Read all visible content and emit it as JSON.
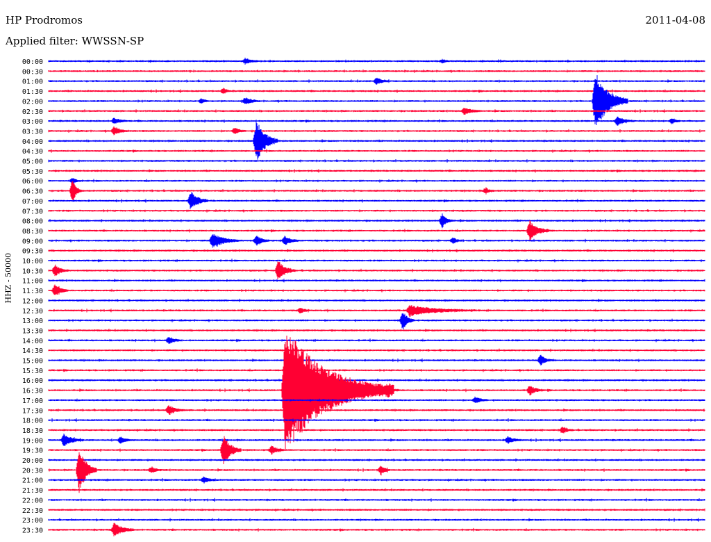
{
  "header": {
    "station": "HP Prodromos",
    "filter": "Applied filter: WWSSN-SP",
    "date": "2011-04-08"
  },
  "chart_data": {
    "type": "line",
    "title": "HP Prodromos",
    "subtitle": "Applied filter: WWSSN-SP",
    "ylabel": "HHZ - 50000",
    "series_colors": [
      "#0000ff",
      "#ff0033"
    ],
    "grid": false,
    "rows": [
      {
        "label": "00:00",
        "color": "#0000ff"
      },
      {
        "label": "00:30",
        "color": "#ff0033"
      },
      {
        "label": "01:00",
        "color": "#0000ff"
      },
      {
        "label": "01:30",
        "color": "#ff0033"
      },
      {
        "label": "02:00",
        "color": "#0000ff"
      },
      {
        "label": "02:30",
        "color": "#ff0033"
      },
      {
        "label": "03:00",
        "color": "#0000ff"
      },
      {
        "label": "03:30",
        "color": "#ff0033"
      },
      {
        "label": "04:00",
        "color": "#0000ff"
      },
      {
        "label": "04:30",
        "color": "#ff0033"
      },
      {
        "label": "05:00",
        "color": "#0000ff"
      },
      {
        "label": "05:30",
        "color": "#ff0033"
      },
      {
        "label": "06:00",
        "color": "#0000ff"
      },
      {
        "label": "06:30",
        "color": "#ff0033"
      },
      {
        "label": "07:00",
        "color": "#0000ff"
      },
      {
        "label": "07:30",
        "color": "#ff0033"
      },
      {
        "label": "08:00",
        "color": "#0000ff"
      },
      {
        "label": "08:30",
        "color": "#ff0033"
      },
      {
        "label": "09:00",
        "color": "#0000ff"
      },
      {
        "label": "09:30",
        "color": "#ff0033"
      },
      {
        "label": "10:00",
        "color": "#0000ff"
      },
      {
        "label": "10:30",
        "color": "#ff0033"
      },
      {
        "label": "11:00",
        "color": "#0000ff"
      },
      {
        "label": "11:30",
        "color": "#ff0033"
      },
      {
        "label": "12:00",
        "color": "#0000ff"
      },
      {
        "label": "12:30",
        "color": "#ff0033"
      },
      {
        "label": "13:00",
        "color": "#0000ff"
      },
      {
        "label": "13:30",
        "color": "#ff0033"
      },
      {
        "label": "14:00",
        "color": "#0000ff"
      },
      {
        "label": "14:30",
        "color": "#ff0033"
      },
      {
        "label": "15:00",
        "color": "#0000ff"
      },
      {
        "label": "15:30",
        "color": "#ff0033"
      },
      {
        "label": "16:00",
        "color": "#0000ff"
      },
      {
        "label": "16:30",
        "color": "#ff0033"
      },
      {
        "label": "17:00",
        "color": "#0000ff"
      },
      {
        "label": "17:30",
        "color": "#ff0033"
      },
      {
        "label": "18:00",
        "color": "#0000ff"
      },
      {
        "label": "18:30",
        "color": "#ff0033"
      },
      {
        "label": "19:00",
        "color": "#0000ff"
      },
      {
        "label": "19:30",
        "color": "#ff0033"
      },
      {
        "label": "20:00",
        "color": "#0000ff"
      },
      {
        "label": "20:30",
        "color": "#ff0033"
      },
      {
        "label": "21:00",
        "color": "#0000ff"
      },
      {
        "label": "21:30",
        "color": "#ff0033"
      },
      {
        "label": "22:00",
        "color": "#0000ff"
      },
      {
        "label": "22:30",
        "color": "#ff0033"
      },
      {
        "label": "23:00",
        "color": "#0000ff"
      },
      {
        "label": "23:30",
        "color": "#ff0033"
      }
    ],
    "events": [
      {
        "row": 0,
        "min": 9,
        "amp": 0.3,
        "dur": 0.6
      },
      {
        "row": 0,
        "min": 18,
        "amp": 0.15,
        "dur": 0.4
      },
      {
        "row": 2,
        "min": 15,
        "amp": 0.35,
        "dur": 0.6
      },
      {
        "row": 3,
        "min": 8,
        "amp": 0.3,
        "dur": 0.3
      },
      {
        "row": 4,
        "min": 7,
        "amp": 0.25,
        "dur": 0.3
      },
      {
        "row": 4,
        "min": 9,
        "amp": 0.35,
        "dur": 0.6
      },
      {
        "row": 4,
        "min": 25,
        "amp": 3.0,
        "dur": 1.5
      },
      {
        "row": 5,
        "min": 19,
        "amp": 0.35,
        "dur": 0.8
      },
      {
        "row": 6,
        "min": 3,
        "amp": 0.3,
        "dur": 0.6
      },
      {
        "row": 6,
        "min": 26,
        "amp": 0.45,
        "dur": 0.7
      },
      {
        "row": 6,
        "min": 28.5,
        "amp": 0.3,
        "dur": 0.4
      },
      {
        "row": 7,
        "min": 3,
        "amp": 0.4,
        "dur": 0.7
      },
      {
        "row": 7,
        "min": 8.5,
        "amp": 0.3,
        "dur": 0.5
      },
      {
        "row": 8,
        "min": 9.5,
        "amp": 2.2,
        "dur": 1.0
      },
      {
        "row": 12,
        "min": 1.1,
        "amp": 0.3,
        "dur": 0.4
      },
      {
        "row": 13,
        "min": 1.1,
        "amp": 1.2,
        "dur": 0.4
      },
      {
        "row": 13,
        "min": 20,
        "amp": 0.3,
        "dur": 0.4
      },
      {
        "row": 14,
        "min": 6.5,
        "amp": 0.9,
        "dur": 0.8
      },
      {
        "row": 16,
        "min": 18,
        "amp": 0.7,
        "dur": 0.5
      },
      {
        "row": 17,
        "min": 22,
        "amp": 1.0,
        "dur": 0.9
      },
      {
        "row": 18,
        "min": 7.5,
        "amp": 0.8,
        "dur": 1.2
      },
      {
        "row": 18,
        "min": 9.5,
        "amp": 0.5,
        "dur": 0.6
      },
      {
        "row": 18,
        "min": 10.8,
        "amp": 0.45,
        "dur": 0.6
      },
      {
        "row": 18,
        "min": 18.5,
        "amp": 0.3,
        "dur": 0.4
      },
      {
        "row": 21,
        "min": 0.3,
        "amp": 0.6,
        "dur": 0.6
      },
      {
        "row": 21,
        "min": 10.5,
        "amp": 1.0,
        "dur": 0.8
      },
      {
        "row": 23,
        "min": 0.3,
        "amp": 0.6,
        "dur": 0.6
      },
      {
        "row": 25,
        "min": 16.5,
        "amp": 0.5,
        "dur": 3.0
      },
      {
        "row": 25,
        "min": 11.5,
        "amp": 0.25,
        "dur": 0.5
      },
      {
        "row": 26,
        "min": 16.2,
        "amp": 1.0,
        "dur": 0.5
      },
      {
        "row": 28,
        "min": 5.5,
        "amp": 0.35,
        "dur": 0.6
      },
      {
        "row": 30,
        "min": 22.5,
        "amp": 0.55,
        "dur": 0.5
      },
      {
        "row": 33,
        "min": 10.8,
        "amp": 6.5,
        "dur": 5.0
      },
      {
        "row": 33,
        "min": 22,
        "amp": 0.5,
        "dur": 0.6
      },
      {
        "row": 33,
        "min": 15.5,
        "amp": 0.3,
        "dur": 0.6
      },
      {
        "row": 34,
        "min": 19.5,
        "amp": 0.3,
        "dur": 0.6
      },
      {
        "row": 35,
        "min": 5.5,
        "amp": 0.5,
        "dur": 0.7
      },
      {
        "row": 37,
        "min": 23.5,
        "amp": 0.35,
        "dur": 0.5
      },
      {
        "row": 38,
        "min": 0.7,
        "amp": 0.6,
        "dur": 0.9
      },
      {
        "row": 38,
        "min": 3.3,
        "amp": 0.35,
        "dur": 0.5
      },
      {
        "row": 38,
        "min": 21,
        "amp": 0.35,
        "dur": 0.6
      },
      {
        "row": 39,
        "min": 8,
        "amp": 1.6,
        "dur": 0.8
      },
      {
        "row": 39,
        "min": 10.2,
        "amp": 0.4,
        "dur": 0.6
      },
      {
        "row": 41,
        "min": 1.4,
        "amp": 2.4,
        "dur": 0.8
      },
      {
        "row": 41,
        "min": 4.7,
        "amp": 0.3,
        "dur": 0.5
      },
      {
        "row": 41,
        "min": 15.2,
        "amp": 0.5,
        "dur": 0.4
      },
      {
        "row": 42,
        "min": 7.1,
        "amp": 0.35,
        "dur": 0.5
      },
      {
        "row": 47,
        "min": 3.0,
        "amp": 0.7,
        "dur": 0.9
      }
    ]
  }
}
